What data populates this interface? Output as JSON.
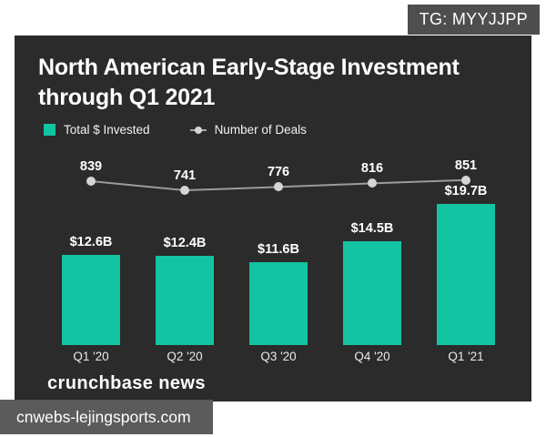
{
  "watermarks": {
    "tg_badge": "TG: MYYJJPP",
    "site": "cnwebs-lejingsports.com"
  },
  "header": {
    "title_line1": "North American Early-Stage Investment",
    "title_line2": "through Q1 2021"
  },
  "footer": {
    "source": "crunchbase news"
  },
  "colors": {
    "panel_background": "#2b2b2b",
    "bar_teal": "#13c4a3",
    "line_gray": "#9c9c9c",
    "dot_gray": "#d6d6d6",
    "badge_gray": "#4e4e4e",
    "watermark_gray": "#5b5b5b",
    "text_white": "#ffffff"
  },
  "chart_data": {
    "type": "bar+line",
    "title": "North American Early-Stage Investment through Q1 2021",
    "categories": [
      "Q1 '20",
      "Q2 '20",
      "Q3 '20",
      "Q4 '20",
      "Q1 '21"
    ],
    "series": [
      {
        "name": "Total $ Invested",
        "type": "bar",
        "unit": "USD billions",
        "values": [
          12.6,
          12.4,
          11.6,
          14.5,
          19.7
        ],
        "labels": [
          "$12.6B",
          "$12.4B",
          "$11.6B",
          "$14.5B",
          "$19.7B"
        ],
        "color": "#13c4a3"
      },
      {
        "name": "Number of Deals",
        "type": "line",
        "values": [
          839,
          741,
          776,
          816,
          851
        ],
        "labels": [
          "839",
          "741",
          "776",
          "816",
          "851"
        ],
        "color": "#d6d6d6"
      }
    ],
    "ylim": [
      0,
      19.7
    ],
    "grid": false,
    "legend_position": "top-left"
  }
}
